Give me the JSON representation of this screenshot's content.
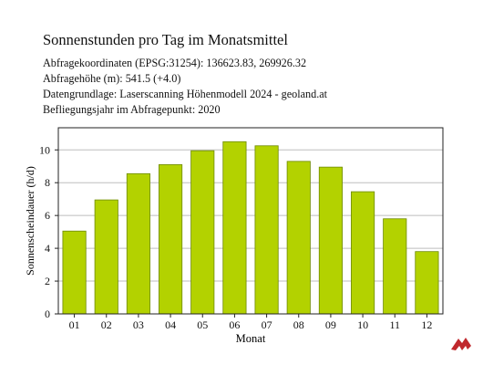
{
  "header": {
    "title": "Sonnenstunden pro Tag im Monatsmittel",
    "lines": [
      "Abfragekoordinaten (EPSG:31254): 136623.83, 269926.32",
      "Abfragehöhe (m): 541.5 (+4.0)",
      "Datengrundlage: Laserscanning Höhenmodell 2024 - geoland.at",
      "Befliegungsjahr im Abfragepunkt: 2020"
    ]
  },
  "chart_data": {
    "type": "bar",
    "categories": [
      "01",
      "02",
      "03",
      "04",
      "05",
      "06",
      "07",
      "08",
      "09",
      "10",
      "11",
      "12"
    ],
    "values": [
      5.05,
      6.95,
      8.55,
      9.1,
      9.95,
      10.5,
      10.25,
      9.3,
      8.95,
      7.45,
      5.8,
      3.8
    ],
    "xlabel": "Monat",
    "ylabel": "Sonnenscheindauer (h/d)",
    "ylim": [
      0,
      11.35
    ],
    "yticks": [
      0,
      2,
      4,
      6,
      8,
      10
    ],
    "grid": true,
    "colors": {
      "bar_fill": "#b3d200",
      "bar_stroke": "#6e8a00",
      "grid": "#bdbdbd",
      "axis": "#222222",
      "logo": "#c0282d"
    }
  },
  "logo": {
    "icon": "company-logo-icon"
  }
}
